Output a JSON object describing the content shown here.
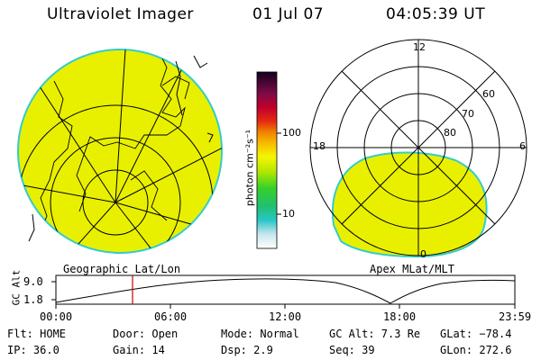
{
  "header": {
    "title": "Ultraviolet Imager",
    "date": "01 Jul 07",
    "time": "04:05:39 UT"
  },
  "colorbar": {
    "label": "photon cm⁻²s⁻¹",
    "ticks": [
      "100",
      "10"
    ]
  },
  "left_map": {
    "label": "Geographic Lat/Lon"
  },
  "right_map": {
    "label": "Apex MLat/MLT",
    "mlt_labels": {
      "top": "12",
      "left": "18",
      "right": "6",
      "bottom": "0"
    },
    "lat_labels": [
      "60",
      "70",
      "80"
    ]
  },
  "alt_plot": {
    "ylabel": "GC Alt",
    "y_ticks": [
      "9.0",
      "1.8"
    ],
    "x_ticks": [
      "00:00",
      "06:00",
      "12:00",
      "18:00",
      "23:59"
    ]
  },
  "info": {
    "flt": "Flt: HOME",
    "ip": "IP: 36.0",
    "door": "Door: Open",
    "gain": "Gain: 14",
    "mode": "Mode: Normal",
    "dsp": "Dsp:    2.9",
    "gcalt": "GC Alt: 7.3 Re",
    "seq": "Seq: 39",
    "glat": "GLat: −78.4",
    "glon": "GLon: 272.6"
  },
  "colors": {
    "fill": "#e8f000",
    "edge": "#33cccc",
    "marker": "#cc0000"
  }
}
